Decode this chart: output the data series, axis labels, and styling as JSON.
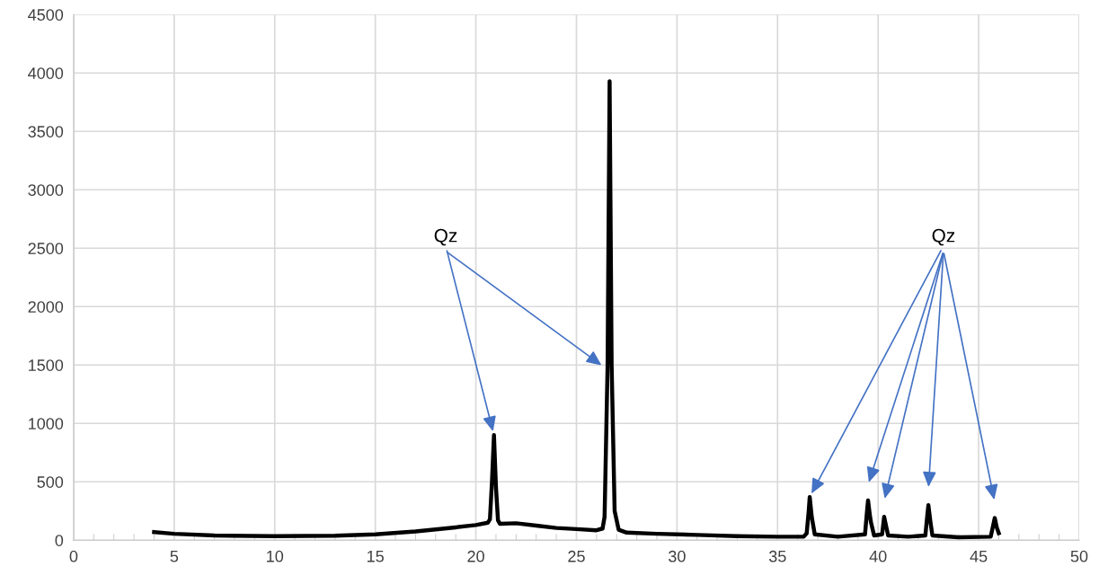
{
  "chart_data": {
    "type": "line",
    "xlim": [
      0,
      50
    ],
    "ylim": [
      0,
      4500
    ],
    "xticks": [
      0,
      5,
      10,
      15,
      20,
      25,
      30,
      35,
      40,
      45,
      50
    ],
    "yticks": [
      0,
      500,
      1000,
      1500,
      2000,
      2500,
      3000,
      3500,
      4000,
      4500
    ],
    "grid": true,
    "legend": false,
    "marker": "none",
    "line_style": "solid",
    "annotations": [
      {
        "text": "Qz",
        "x": 20.9,
        "y": 900
      },
      {
        "text": "Qz",
        "x": 36.6,
        "y": 370
      }
    ],
    "series": [
      {
        "color": "#000000",
        "x": [
          4,
          5,
          7,
          10,
          13,
          15,
          17,
          19,
          20,
          20.6,
          20.7,
          20.8,
          20.9,
          21.0,
          21.1,
          21.2,
          22,
          23,
          24,
          25,
          26,
          26.3,
          26.4,
          26.55,
          26.65,
          26.75,
          26.9,
          27.1,
          27.5,
          29,
          31,
          33,
          35,
          36.3,
          36.45,
          36.55,
          36.6,
          36.7,
          36.85,
          38,
          39.35,
          39.45,
          39.5,
          39.6,
          39.65,
          39.8,
          40.2,
          40.3,
          40.4,
          40.5,
          41.5,
          42.35,
          42.45,
          42.5,
          42.6,
          42.7,
          44,
          45.6,
          45.75,
          45.8,
          45.9,
          46.0
        ],
        "values": [
          70,
          55,
          40,
          35,
          38,
          50,
          75,
          110,
          130,
          150,
          180,
          500,
          900,
          450,
          170,
          140,
          145,
          125,
          105,
          95,
          85,
          100,
          200,
          1500,
          3930,
          1500,
          250,
          90,
          65,
          55,
          45,
          35,
          30,
          30,
          60,
          250,
          370,
          200,
          50,
          30,
          50,
          250,
          340,
          200,
          150,
          40,
          50,
          200,
          120,
          40,
          30,
          40,
          220,
          300,
          160,
          40,
          25,
          30,
          150,
          190,
          110,
          60
        ]
      }
    ]
  }
}
